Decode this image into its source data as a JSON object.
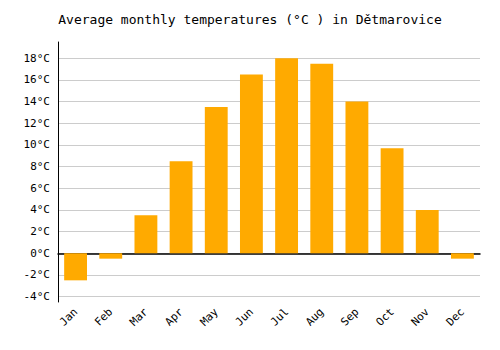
{
  "chart_data": {
    "type": "bar",
    "title": "Average monthly temperatures (°C ) in Dětmarovice",
    "categories": [
      "Jan",
      "Feb",
      "Mar",
      "Apr",
      "May",
      "Jun",
      "Jul",
      "Aug",
      "Sep",
      "Oct",
      "Nov",
      "Dec"
    ],
    "values": [
      -2.5,
      -0.5,
      3.5,
      8.5,
      13.5,
      16.5,
      18.0,
      17.5,
      14.0,
      9.7,
      4.0,
      -0.5
    ],
    "color": "#FFAA00",
    "ylim": [
      -4.5,
      19.5
    ],
    "yticks": [
      {
        "value": -4,
        "label": "-4°C"
      },
      {
        "value": -2,
        "label": "-2°C"
      },
      {
        "value": 0,
        "label": "0°C"
      },
      {
        "value": 2,
        "label": "2°C"
      },
      {
        "value": 4,
        "label": "4°C"
      },
      {
        "value": 6,
        "label": "6°C"
      },
      {
        "value": 8,
        "label": "8°C"
      },
      {
        "value": 10,
        "label": "10°C"
      },
      {
        "value": 12,
        "label": "12°C"
      },
      {
        "value": 14,
        "label": "14°C"
      },
      {
        "value": 16,
        "label": "16°C"
      },
      {
        "value": 18,
        "label": "18°C"
      }
    ],
    "grid": true
  }
}
